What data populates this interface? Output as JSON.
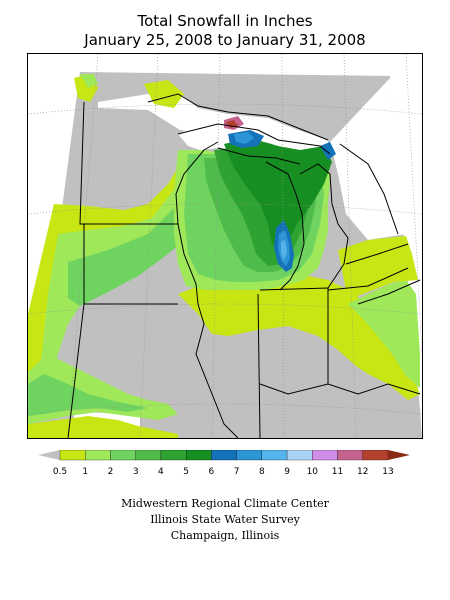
{
  "title_line1": "Total Snowfall in Inches",
  "title_line2": "January 25, 2008 to January 31, 2008",
  "legend": {
    "ticks": [
      "0.5",
      "1",
      "2",
      "3",
      "4",
      "5",
      "6",
      "7",
      "8",
      "9",
      "10",
      "11",
      "12",
      "13"
    ],
    "colors": [
      "#c0c0c0",
      "#c8e613",
      "#9ee85a",
      "#6fd45f",
      "#4fbb4a",
      "#2fa332",
      "#178e22",
      "#1473b8",
      "#2b95d6",
      "#54b4ec",
      "#a9d4f5",
      "#d08de8",
      "#c6628e",
      "#b4412e",
      "#8a2a14"
    ]
  },
  "map_colors": {
    "no_snow": "#c0c0c0",
    "c1": "#c8e613",
    "c2": "#9ee85a",
    "c3": "#6fd45f",
    "c4": "#4fbb4a",
    "c5": "#2fa332",
    "c6": "#178e22",
    "c7": "#1473b8",
    "c8": "#2b95d6",
    "c9": "#54b4ec",
    "c12": "#c6628e",
    "c13": "#b4412e",
    "lines": "#000000",
    "grid": "#909090"
  },
  "credits": {
    "line1": "Midwestern Regional Climate Center",
    "line2": "Illinois State Water Survey",
    "line3": "Champaign, Illinois"
  }
}
